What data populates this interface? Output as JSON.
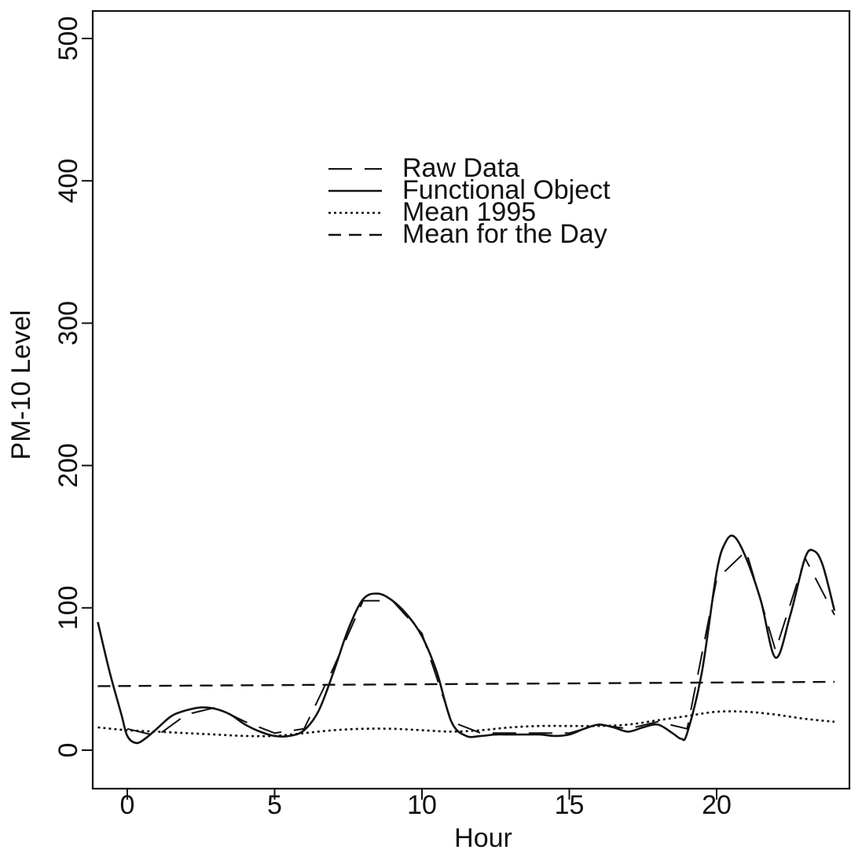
{
  "chart_data": {
    "type": "line",
    "title": "",
    "xlabel": "Hour",
    "ylabel": "PM-10 Level",
    "xlim": [
      -1,
      24
    ],
    "ylim": [
      -20,
      520
    ],
    "xticks": [
      0,
      5,
      10,
      15,
      20
    ],
    "yticks": [
      0,
      100,
      200,
      300,
      400,
      500
    ],
    "xtick_labels": [
      "0",
      "5",
      "10",
      "15",
      "20"
    ],
    "ytick_labels": [
      "0",
      "100",
      "200",
      "300",
      "400",
      "500"
    ],
    "grid": false,
    "legend_position": "top-center",
    "series": [
      {
        "name": "Raw Data",
        "style": "long-dash",
        "x": [
          0,
          1,
          2,
          3,
          4,
          5,
          6,
          7,
          8,
          9,
          10,
          11,
          12,
          13,
          14,
          15,
          16,
          17,
          18,
          19,
          20,
          21,
          22,
          23,
          24
        ],
        "y": [
          15,
          10,
          25,
          30,
          20,
          12,
          15,
          58,
          105,
          105,
          82,
          20,
          12,
          12,
          12,
          12,
          18,
          15,
          20,
          15,
          120,
          140,
          70,
          135,
          95
        ]
      },
      {
        "name": "Functional Object",
        "style": "solid",
        "x": [
          -1,
          -0.6,
          -0.2,
          0,
          0.3,
          0.6,
          1,
          1.5,
          2,
          2.5,
          3,
          3.5,
          4,
          4.5,
          5,
          5.5,
          6,
          6.5,
          7,
          7.5,
          8,
          8.5,
          9,
          9.5,
          10,
          10.5,
          11,
          11.5,
          12,
          12.5,
          13,
          13.5,
          14,
          14.5,
          15,
          15.5,
          16,
          16.5,
          17,
          17.5,
          18,
          18.5,
          18.8,
          19,
          19.5,
          20,
          20.3,
          20.6,
          21,
          21.5,
          22,
          22.5,
          23,
          23.3,
          23.6,
          24
        ],
        "y": [
          90,
          55,
          25,
          10,
          5,
          8,
          15,
          24,
          28,
          30,
          29,
          25,
          18,
          13,
          10,
          10,
          14,
          28,
          55,
          85,
          106,
          110,
          105,
          95,
          80,
          55,
          20,
          10,
          10,
          11,
          11,
          11,
          11,
          10,
          11,
          15,
          18,
          16,
          13,
          16,
          18,
          12,
          8,
          12,
          55,
          125,
          146,
          150,
          135,
          105,
          65,
          95,
          135,
          140,
          130,
          98
        ]
      },
      {
        "name": "Mean 1995",
        "style": "dotted",
        "x": [
          -1,
          0,
          1,
          2,
          3,
          4,
          5,
          6,
          7,
          8,
          9,
          10,
          11,
          12,
          13,
          14,
          15,
          16,
          17,
          18,
          19,
          20,
          21,
          22,
          23,
          24
        ],
        "y": [
          16,
          14,
          13,
          12,
          11,
          10,
          10,
          12,
          14,
          15,
          15,
          14,
          13,
          14,
          16,
          17,
          17,
          17,
          18,
          21,
          24,
          27,
          27,
          25,
          22,
          20
        ]
      },
      {
        "name": "Mean for the Day",
        "style": "dashed",
        "x": [
          -1,
          24
        ],
        "y": [
          45,
          48
        ]
      }
    ]
  }
}
